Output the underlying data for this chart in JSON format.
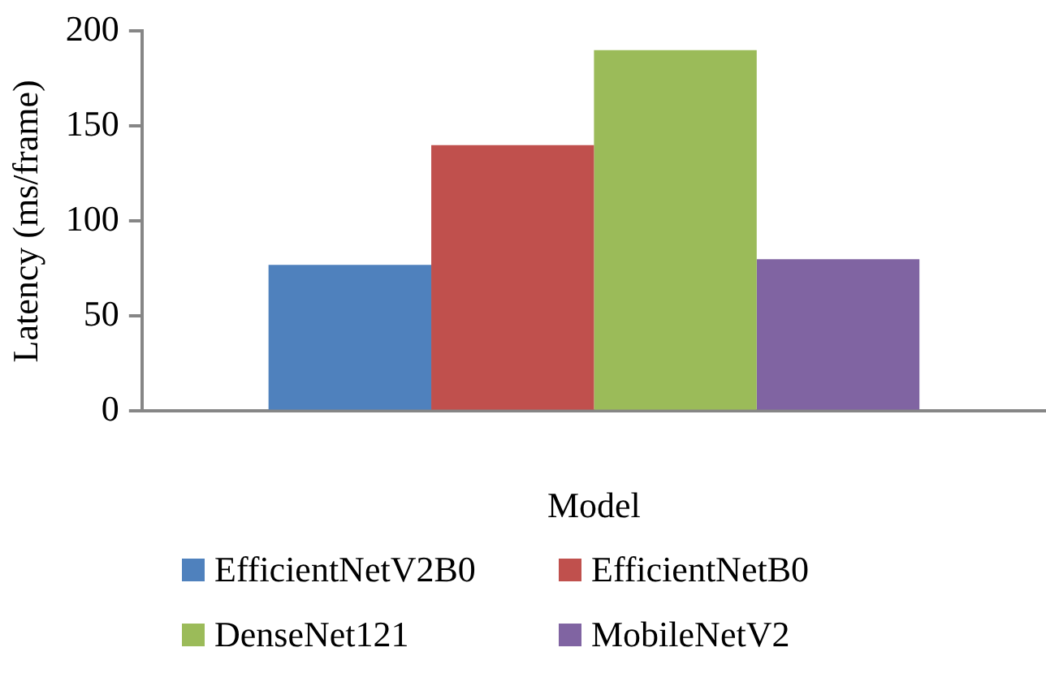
{
  "chart_data": {
    "type": "bar",
    "xlabel": "Model",
    "ylabel": "Latency (ms/frame)",
    "categories": [
      null
    ],
    "series": [
      {
        "name": "EfficientNetV2B0",
        "color": "#4f81bd",
        "values": [
          77
        ]
      },
      {
        "name": "EfficientNetB0",
        "color": "#c0504d",
        "values": [
          140
        ]
      },
      {
        "name": "DenseNet121",
        "color": "#9bbb59",
        "values": [
          190
        ]
      },
      {
        "name": "MobileNetV2",
        "color": "#8064a2",
        "values": [
          80
        ]
      }
    ],
    "ylim": [
      0,
      200
    ],
    "yticks": [
      0,
      50,
      100,
      150,
      200
    ],
    "grid": false,
    "legend": "bottom"
  }
}
